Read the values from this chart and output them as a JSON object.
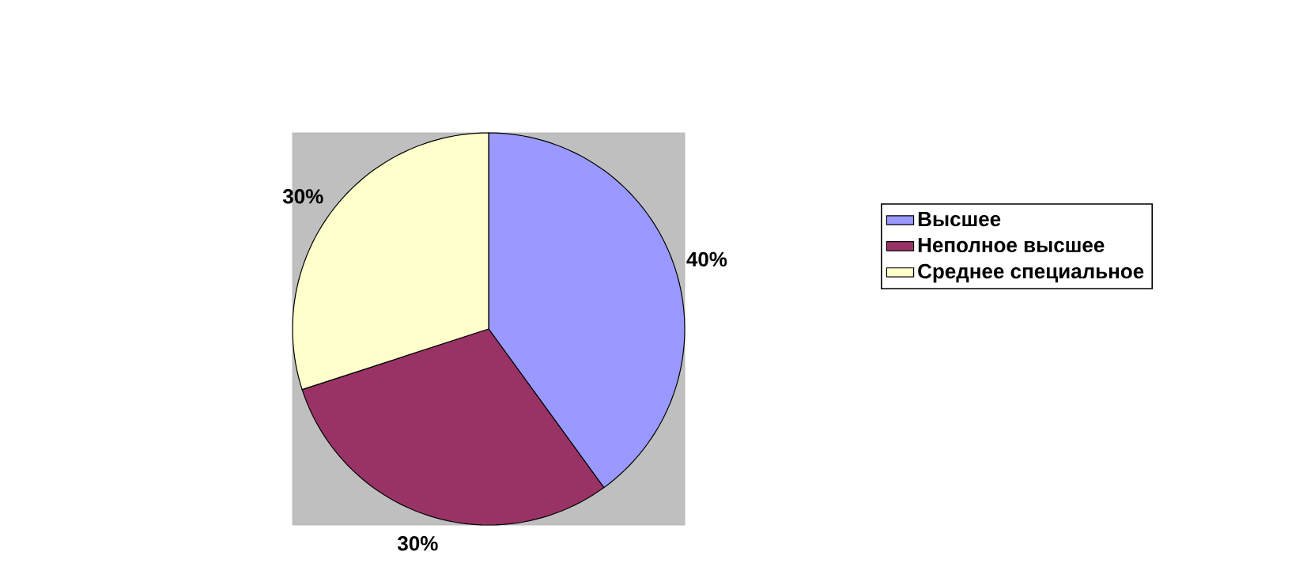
{
  "chart_data": {
    "type": "pie",
    "categories": [
      "Высшее",
      "Неполное высшее",
      "Среднее специальное"
    ],
    "values": [
      40,
      30,
      30
    ],
    "colors": [
      "#9999ff",
      "#993366",
      "#ffffcc"
    ],
    "value_labels": [
      "40%",
      "30%",
      "30%"
    ],
    "legend": "right"
  }
}
